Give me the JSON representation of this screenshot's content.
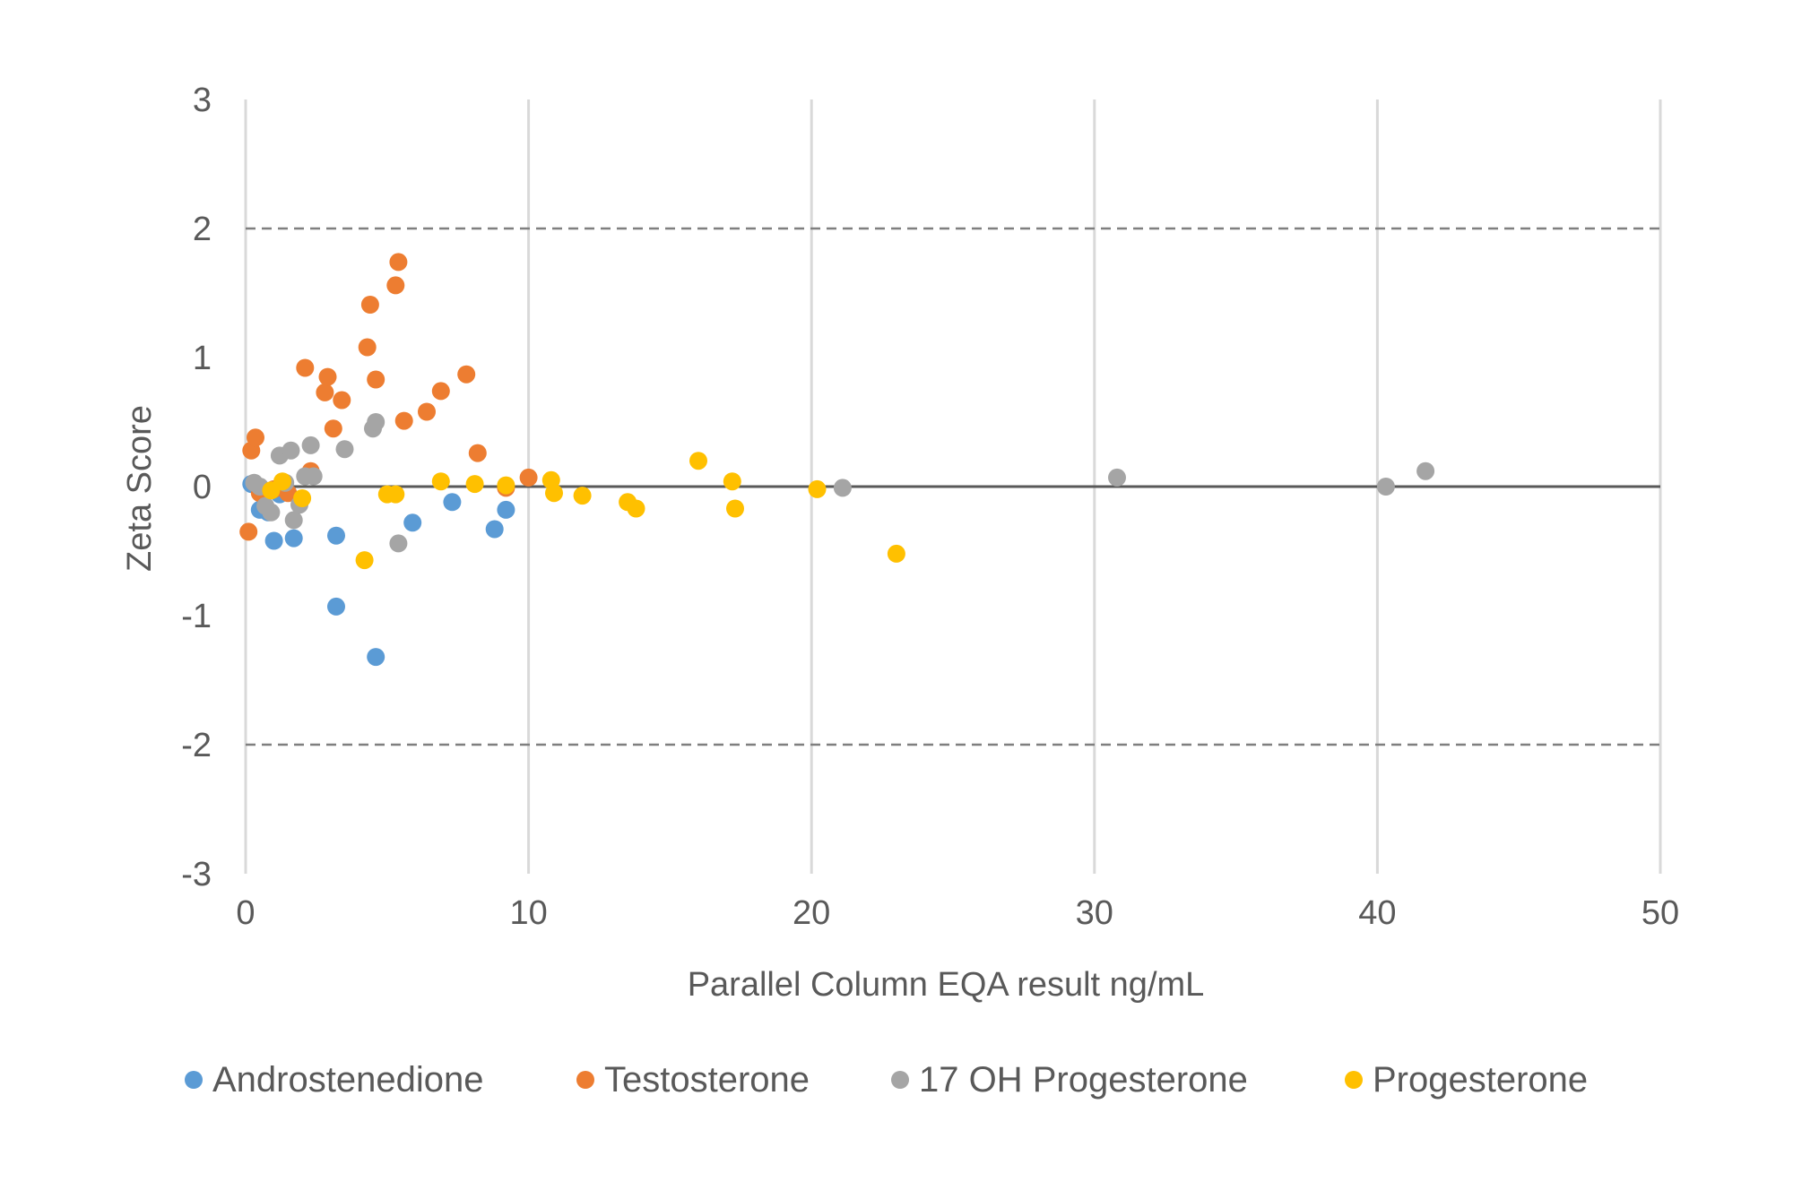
{
  "chart_data": {
    "type": "scatter",
    "title": "",
    "xlabel": "Parallel Column  EQA result ng/mL",
    "ylabel": "Zeta Score",
    "xlim": [
      0,
      50
    ],
    "ylim": [
      -3,
      3
    ],
    "x_ticks": [
      0,
      10,
      20,
      30,
      40,
      50
    ],
    "y_ticks": [
      3,
      2,
      1,
      0,
      -1,
      -2,
      -3
    ],
    "grid": "vertical",
    "legend_position": "bottom",
    "reference_lines": [
      {
        "y": 2,
        "style": "dashed",
        "color": "#7f7f7f"
      },
      {
        "y": -2,
        "style": "dashed",
        "color": "#7f7f7f"
      },
      {
        "y": 0,
        "style": "solid",
        "color": "#595959"
      }
    ],
    "series": [
      {
        "name": "Androstenedione",
        "color": "#5b9bd5",
        "points": [
          [
            0.2,
            0.02
          ],
          [
            0.5,
            -0.18
          ],
          [
            0.8,
            -0.2
          ],
          [
            1.0,
            -0.42
          ],
          [
            1.2,
            -0.06
          ],
          [
            1.7,
            -0.4
          ],
          [
            3.2,
            -0.38
          ],
          [
            3.2,
            -0.93
          ],
          [
            4.6,
            -1.32
          ],
          [
            5.9,
            -0.28
          ],
          [
            7.3,
            -0.12
          ],
          [
            8.8,
            -0.33
          ],
          [
            9.2,
            -0.18
          ]
        ]
      },
      {
        "name": "Testosterone",
        "color": "#ed7d31",
        "points": [
          [
            0.1,
            -0.35
          ],
          [
            0.2,
            0.28
          ],
          [
            0.35,
            0.38
          ],
          [
            0.5,
            -0.05
          ],
          [
            1.0,
            -0.02
          ],
          [
            1.5,
            -0.05
          ],
          [
            2.1,
            0.92
          ],
          [
            2.3,
            0.12
          ],
          [
            2.8,
            0.73
          ],
          [
            2.9,
            0.85
          ],
          [
            3.1,
            0.45
          ],
          [
            3.4,
            0.67
          ],
          [
            4.3,
            1.08
          ],
          [
            4.4,
            1.41
          ],
          [
            4.6,
            0.83
          ],
          [
            5.3,
            1.56
          ],
          [
            5.4,
            1.74
          ],
          [
            5.6,
            0.51
          ],
          [
            6.4,
            0.58
          ],
          [
            6.9,
            0.74
          ],
          [
            7.8,
            0.87
          ],
          [
            8.2,
            0.26
          ],
          [
            9.2,
            -0.01
          ],
          [
            10.0,
            0.07
          ]
        ]
      },
      {
        "name": "17 OH Progesterone",
        "color": "#a5a5a5",
        "points": [
          [
            0.3,
            0.03
          ],
          [
            0.5,
            0.0
          ],
          [
            0.7,
            -0.15
          ],
          [
            0.9,
            -0.2
          ],
          [
            1.2,
            0.24
          ],
          [
            1.4,
            0.03
          ],
          [
            1.6,
            0.28
          ],
          [
            1.7,
            -0.26
          ],
          [
            1.9,
            -0.14
          ],
          [
            2.1,
            0.08
          ],
          [
            2.3,
            0.32
          ],
          [
            2.4,
            0.08
          ],
          [
            3.5,
            0.29
          ],
          [
            4.5,
            0.45
          ],
          [
            4.6,
            0.5
          ],
          [
            5.4,
            -0.44
          ],
          [
            21.1,
            -0.01
          ],
          [
            30.8,
            0.07
          ],
          [
            40.3,
            0.0
          ],
          [
            41.7,
            0.12
          ]
        ]
      },
      {
        "name": "Progesterone",
        "color": "#ffc000",
        "points": [
          [
            0.9,
            -0.03
          ],
          [
            1.3,
            0.04
          ],
          [
            2.0,
            -0.09
          ],
          [
            4.2,
            -0.57
          ],
          [
            5.0,
            -0.06
          ],
          [
            5.3,
            -0.06
          ],
          [
            6.9,
            0.04
          ],
          [
            8.1,
            0.02
          ],
          [
            9.2,
            0.01
          ],
          [
            10.8,
            0.05
          ],
          [
            10.9,
            -0.05
          ],
          [
            11.9,
            -0.07
          ],
          [
            13.5,
            -0.12
          ],
          [
            13.8,
            -0.17
          ],
          [
            16.0,
            0.2
          ],
          [
            17.2,
            0.04
          ],
          [
            17.3,
            -0.17
          ],
          [
            20.2,
            -0.02
          ],
          [
            23.0,
            -0.52
          ]
        ]
      }
    ]
  }
}
